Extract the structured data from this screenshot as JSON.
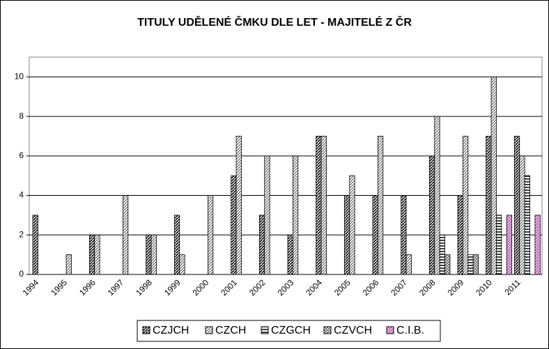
{
  "chart_data": {
    "type": "bar",
    "title": "TITULY UDĚLENÉ ČMKU DLE LET - MAJITELÉ Z ČR",
    "categories": [
      "1994",
      "1995",
      "1996",
      "1997",
      "1998",
      "1999",
      "2000",
      "2001",
      "2002",
      "2003",
      "2004",
      "2005",
      "2006",
      "2007",
      "2008",
      "2009",
      "2010",
      "2011"
    ],
    "series": [
      {
        "name": "CZJCH",
        "color": "#000000",
        "hatch": "diagonal",
        "values": [
          3,
          0,
          2,
          0,
          2,
          3,
          0,
          5,
          3,
          2,
          7,
          4,
          4,
          4,
          6,
          4,
          7,
          7
        ]
      },
      {
        "name": "CZCH",
        "color": "#555555",
        "hatch": "diagonal",
        "values": [
          0,
          1,
          2,
          4,
          2,
          1,
          4,
          7,
          6,
          6,
          7,
          5,
          7,
          1,
          8,
          7,
          10,
          6
        ]
      },
      {
        "name": "CZGCH",
        "color": "#000000",
        "hatch": "horizontal",
        "values": [
          0,
          0,
          0,
          0,
          0,
          0,
          0,
          0,
          0,
          0,
          0,
          0,
          0,
          0,
          2,
          1,
          3,
          5
        ]
      },
      {
        "name": "CZVCH",
        "color": "#666666",
        "hatch": "cross",
        "values": [
          0,
          0,
          0,
          0,
          0,
          0,
          0,
          0,
          0,
          0,
          0,
          0,
          0,
          0,
          1,
          1,
          0,
          0
        ]
      },
      {
        "name": "C.I.B.",
        "color": "#993399",
        "hatch": "diagonal-light",
        "values": [
          0,
          0,
          0,
          0,
          0,
          0,
          0,
          0,
          0,
          0,
          0,
          0,
          0,
          0,
          0,
          0,
          3,
          3
        ]
      }
    ],
    "ylim": [
      0,
      11
    ],
    "yticks": [
      0,
      2,
      4,
      6,
      8,
      10
    ],
    "grid": true,
    "legend": "bottom"
  }
}
